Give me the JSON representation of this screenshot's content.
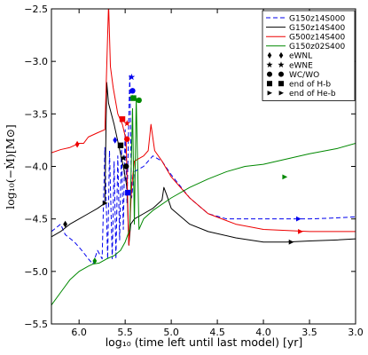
{
  "chart_data": {
    "type": "line",
    "xlabel": "log₁₀ (time left until last model) [yr]",
    "ylabel": "log₁₀(−Ṁ)[M⊙]",
    "xlim": [
      6.3,
      3.0
    ],
    "ylim": [
      -5.5,
      -2.5
    ],
    "x_reversed": true,
    "xticks": [
      6.0,
      5.5,
      5.0,
      4.5,
      4.0,
      3.5,
      3.0
    ],
    "xtick_labels": [
      "6.0",
      "5.5",
      "5.0",
      "4.5",
      "4.0",
      "3.5",
      "3.0"
    ],
    "yticks": [
      -5.5,
      -5.0,
      -4.5,
      -4.0,
      -3.5,
      -3.0,
      -2.5
    ],
    "ytick_labels": [
      "−5.5",
      "−5.0",
      "−4.5",
      "−4.0",
      "−3.5",
      "−3.0",
      "−2.5"
    ],
    "grid": false,
    "legend_position": "top-right",
    "series": [
      {
        "name": "G150z14S000",
        "color": "#0000ee",
        "dash": "dashed",
        "points": [
          [
            6.3,
            -4.62
          ],
          [
            6.2,
            -4.55
          ],
          [
            6.15,
            -4.65
          ],
          [
            6.05,
            -4.72
          ],
          [
            5.97,
            -4.8
          ],
          [
            5.9,
            -4.88
          ],
          [
            5.85,
            -4.93
          ],
          [
            5.8,
            -4.8
          ],
          [
            5.75,
            -4.88
          ],
          [
            5.72,
            -3.82
          ],
          [
            5.69,
            -4.88
          ],
          [
            5.67,
            -3.85
          ],
          [
            5.64,
            -4.88
          ],
          [
            5.62,
            -3.95
          ],
          [
            5.6,
            -4.88
          ],
          [
            5.58,
            -3.9
          ],
          [
            5.56,
            -4.7
          ],
          [
            5.54,
            -3.8
          ],
          [
            5.52,
            -4.6
          ],
          [
            5.5,
            -3.65
          ],
          [
            5.48,
            -4.35
          ],
          [
            5.45,
            -3.12
          ],
          [
            5.43,
            -4.3
          ],
          [
            5.4,
            -4.05
          ],
          [
            5.3,
            -4.0
          ],
          [
            5.2,
            -3.9
          ],
          [
            5.1,
            -3.95
          ],
          [
            5.0,
            -4.08
          ],
          [
            4.8,
            -4.3
          ],
          [
            4.6,
            -4.45
          ],
          [
            4.4,
            -4.5
          ],
          [
            4.2,
            -4.5
          ],
          [
            3.9,
            -4.5
          ],
          [
            3.5,
            -4.5
          ],
          [
            3.2,
            -4.49
          ],
          [
            3.0,
            -4.48
          ]
        ]
      },
      {
        "name": "G150z14S400",
        "color": "#000000",
        "dash": "solid",
        "points": [
          [
            6.3,
            -4.67
          ],
          [
            6.2,
            -4.62
          ],
          [
            6.1,
            -4.55
          ],
          [
            6.0,
            -4.5
          ],
          [
            5.9,
            -4.45
          ],
          [
            5.8,
            -4.4
          ],
          [
            5.72,
            -4.35
          ],
          [
            5.7,
            -3.2
          ],
          [
            5.68,
            -3.4
          ],
          [
            5.62,
            -3.6
          ],
          [
            5.57,
            -3.8
          ],
          [
            5.52,
            -4.0
          ],
          [
            5.48,
            -4.2
          ],
          [
            5.46,
            -4.75
          ],
          [
            5.44,
            -4.55
          ],
          [
            5.4,
            -4.5
          ],
          [
            5.3,
            -4.45
          ],
          [
            5.2,
            -4.4
          ],
          [
            5.1,
            -4.32
          ],
          [
            5.08,
            -4.2
          ],
          [
            5.05,
            -4.27
          ],
          [
            5.0,
            -4.4
          ],
          [
            4.8,
            -4.55
          ],
          [
            4.6,
            -4.62
          ],
          [
            4.3,
            -4.68
          ],
          [
            4.0,
            -4.72
          ],
          [
            3.75,
            -4.72
          ],
          [
            3.5,
            -4.71
          ],
          [
            3.2,
            -4.7
          ],
          [
            3.0,
            -4.69
          ]
        ]
      },
      {
        "name": "G500z14S400",
        "color": "#ee0000",
        "dash": "solid",
        "points": [
          [
            6.3,
            -3.87
          ],
          [
            6.2,
            -3.84
          ],
          [
            6.1,
            -3.82
          ],
          [
            6.05,
            -3.8
          ],
          [
            6.0,
            -3.78
          ],
          [
            5.95,
            -3.78
          ],
          [
            5.9,
            -3.72
          ],
          [
            5.8,
            -3.68
          ],
          [
            5.72,
            -3.65
          ],
          [
            5.68,
            -2.45
          ],
          [
            5.66,
            -3.05
          ],
          [
            5.63,
            -3.25
          ],
          [
            5.6,
            -3.4
          ],
          [
            5.58,
            -3.5
          ],
          [
            5.53,
            -3.6
          ],
          [
            5.49,
            -3.75
          ],
          [
            5.46,
            -4.75
          ],
          [
            5.43,
            -4.2
          ],
          [
            5.4,
            -3.95
          ],
          [
            5.3,
            -3.9
          ],
          [
            5.25,
            -3.85
          ],
          [
            5.22,
            -3.6
          ],
          [
            5.18,
            -3.85
          ],
          [
            5.1,
            -3.95
          ],
          [
            5.0,
            -4.1
          ],
          [
            4.8,
            -4.3
          ],
          [
            4.6,
            -4.45
          ],
          [
            4.3,
            -4.55
          ],
          [
            4.0,
            -4.6
          ],
          [
            3.5,
            -4.62
          ],
          [
            3.2,
            -4.62
          ],
          [
            3.0,
            -4.62
          ]
        ]
      },
      {
        "name": "G150z02S400",
        "color": "#008800",
        "dash": "solid",
        "points": [
          [
            6.3,
            -5.32
          ],
          [
            6.2,
            -5.2
          ],
          [
            6.1,
            -5.08
          ],
          [
            6.0,
            -5.0
          ],
          [
            5.9,
            -4.95
          ],
          [
            5.85,
            -4.93
          ],
          [
            5.78,
            -4.92
          ],
          [
            5.7,
            -4.88
          ],
          [
            5.62,
            -4.85
          ],
          [
            5.55,
            -4.8
          ],
          [
            5.5,
            -4.72
          ],
          [
            5.45,
            -4.6
          ],
          [
            5.42,
            -3.45
          ],
          [
            5.4,
            -4.55
          ],
          [
            5.38,
            -3.35
          ],
          [
            5.35,
            -4.6
          ],
          [
            5.3,
            -4.5
          ],
          [
            5.2,
            -4.42
          ],
          [
            5.0,
            -4.3
          ],
          [
            4.8,
            -4.2
          ],
          [
            4.6,
            -4.12
          ],
          [
            4.4,
            -4.05
          ],
          [
            4.2,
            -4.0
          ],
          [
            4.0,
            -3.98
          ],
          [
            3.7,
            -3.92
          ],
          [
            3.5,
            -3.88
          ],
          [
            3.2,
            -3.83
          ],
          [
            3.0,
            -3.78
          ]
        ]
      }
    ],
    "markers": [
      {
        "series": 0,
        "kind": "diamond",
        "x": 5.61,
        "y": -3.75
      },
      {
        "series": 0,
        "kind": "star",
        "x": 5.43,
        "y": -3.15
      },
      {
        "series": 0,
        "kind": "circle",
        "x": 5.42,
        "y": -3.28
      },
      {
        "series": 0,
        "kind": "square",
        "x": 5.47,
        "y": -4.25
      },
      {
        "series": 0,
        "kind": "triangle",
        "x": 3.62,
        "y": -4.5
      },
      {
        "series": 1,
        "kind": "diamond",
        "x": 6.15,
        "y": -4.55
      },
      {
        "series": 1,
        "kind": "star",
        "x": 5.52,
        "y": -3.92
      },
      {
        "series": 1,
        "kind": "circle",
        "x": 5.49,
        "y": -4.0
      },
      {
        "series": 1,
        "kind": "square",
        "x": 5.55,
        "y": -3.8
      },
      {
        "series": 1,
        "kind": "triangle",
        "x": 5.72,
        "y": -4.35
      },
      {
        "series": 1,
        "kind": "triangle",
        "x": 3.7,
        "y": -4.72
      },
      {
        "series": 2,
        "kind": "diamond",
        "x": 6.02,
        "y": -3.79
      },
      {
        "series": 2,
        "kind": "star",
        "x": 5.48,
        "y": -3.59
      },
      {
        "series": 2,
        "kind": "circle",
        "x": 5.48,
        "y": -3.74
      },
      {
        "series": 2,
        "kind": "square",
        "x": 5.53,
        "y": -3.55
      },
      {
        "series": 2,
        "kind": "triangle",
        "x": 3.6,
        "y": -4.62
      },
      {
        "series": 3,
        "kind": "diamond",
        "x": 5.83,
        "y": -4.9
      },
      {
        "series": 3,
        "kind": "star",
        "x": 5.42,
        "y": -3.35
      },
      {
        "series": 3,
        "kind": "circle",
        "x": 5.35,
        "y": -3.37
      },
      {
        "series": 3,
        "kind": "square",
        "x": 5.41,
        "y": -3.35
      },
      {
        "series": 3,
        "kind": "triangle",
        "x": 3.77,
        "y": -4.1
      }
    ],
    "marker_legend": [
      {
        "kind": "diamond",
        "label": "eWNL"
      },
      {
        "kind": "star",
        "label": "eWNE"
      },
      {
        "kind": "circle",
        "label": "WC/WO"
      },
      {
        "kind": "square",
        "label": "end of H-b"
      },
      {
        "kind": "triangle",
        "label": "end of He-b"
      }
    ]
  }
}
